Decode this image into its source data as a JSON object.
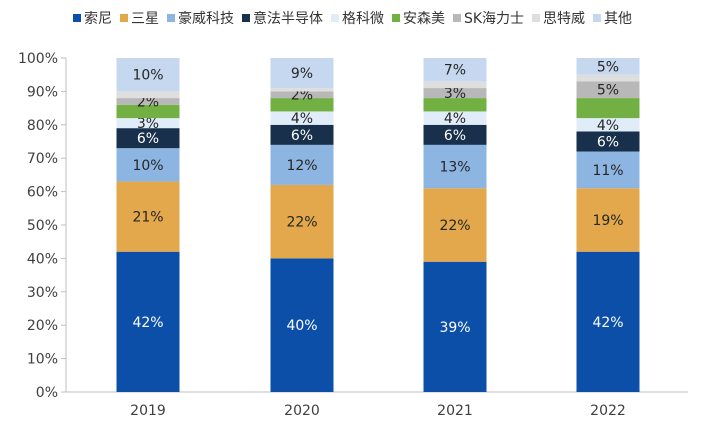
{
  "chart_data": {
    "type": "bar",
    "stacked": true,
    "normalized": true,
    "categories": [
      "2019",
      "2020",
      "2021",
      "2022"
    ],
    "y_ticks": [
      "0%",
      "10%",
      "20%",
      "30%",
      "40%",
      "50%",
      "60%",
      "70%",
      "80%",
      "90%",
      "100%"
    ],
    "ylim": [
      0,
      100
    ],
    "legend_position": "top",
    "grid": false,
    "series": [
      {
        "name": "索尼",
        "color": "#0b4fa8",
        "values": [
          42,
          40,
          39,
          42
        ],
        "labels": [
          "42%",
          "40%",
          "39%",
          "42%"
        ]
      },
      {
        "name": "三星",
        "color": "#e2a84b",
        "values": [
          21,
          22,
          22,
          19
        ],
        "labels": [
          "21%",
          "22%",
          "22%",
          "19%"
        ]
      },
      {
        "name": "豪威科技",
        "color": "#8db5e2",
        "values": [
          10,
          12,
          13,
          11
        ],
        "labels": [
          "10%",
          "12%",
          "13%",
          "11%"
        ]
      },
      {
        "name": "意法半导体",
        "color": "#18304b",
        "values": [
          6,
          6,
          6,
          6
        ],
        "labels": [
          "6%",
          "6%",
          "6%",
          "6%"
        ]
      },
      {
        "name": "格科微",
        "color": "#e0edf8",
        "values": [
          3,
          4,
          4,
          4
        ],
        "labels": [
          "3%",
          "4%",
          "4%",
          "4%"
        ]
      },
      {
        "name": "安森美",
        "color": "#72b043",
        "values": [
          4,
          4,
          4,
          6
        ],
        "labels": [
          "",
          "",
          "",
          ""
        ]
      },
      {
        "name": "SK海力士",
        "color": "#b8b8b8",
        "values": [
          2,
          2,
          3,
          5
        ],
        "labels": [
          "2%",
          "2%",
          "3%",
          "5%"
        ]
      },
      {
        "name": "思特威",
        "color": "#dedede",
        "values": [
          2,
          1,
          2,
          2
        ],
        "labels": [
          "",
          "",
          "",
          ""
        ]
      },
      {
        "name": "其他",
        "color": "#c5d8f0",
        "values": [
          10,
          9,
          7,
          5
        ],
        "labels": [
          "10%",
          "9%",
          "7%",
          "5%"
        ]
      }
    ]
  }
}
